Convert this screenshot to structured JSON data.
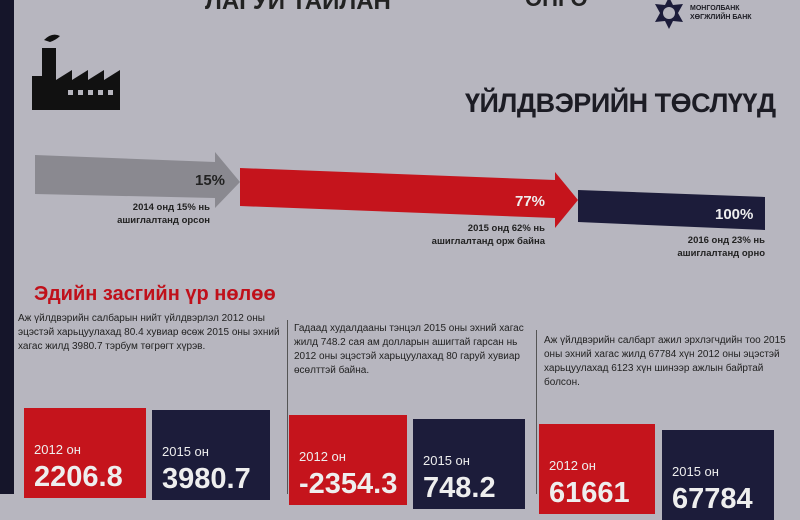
{
  "header": {
    "title_fragment": "ЛАГУЙ ТАЙЛАН",
    "title_fragment_right": "ӨНГӨ",
    "logo_text": [
      "МОНГОЛБАНК",
      "ХӨГЖЛИЙН БАНК"
    ]
  },
  "section1": {
    "title": "ҮЙЛДВЭРИЙН ТӨСЛҮҮД",
    "stages": [
      {
        "percent": "15%",
        "caption": [
          "2014 онд 15% нь",
          "ашиглалтанд орсон"
        ],
        "color": "#8a8990"
      },
      {
        "percent": "77%",
        "caption": [
          "2015 онд 62% нь",
          "ашиглалтанд орж байна"
        ],
        "color": "#c5141c"
      },
      {
        "percent": "100%",
        "caption": [
          "2016 онд 23% нь",
          "ашиглалтанд орно"
        ],
        "color": "#1c1c3a"
      }
    ]
  },
  "section2": {
    "title": "Эдийн засгийн үр нөлөө",
    "columns": [
      {
        "text": "Аж үйлдвэрийн салбарын нийт үйлдвэрлэл 2012 оны эцэстэй харьцуулахад 80.4 хувиар өсөж 2015 оны эхний хагас жилд 3980.7 тэрбум төгрөгт хүрэв.",
        "cards": [
          {
            "year": "2012 он",
            "value": "2206.8"
          },
          {
            "year": "2015 он",
            "value": "3980.7"
          }
        ]
      },
      {
        "text": "Гадаад худалдааны тэнцэл 2015 оны эхний хагас жилд 748.2 сая ам долларын ашигтай гарсан нь 2012 оны эцэстэй харьцуулахад 80 гаруй хувиар өсөлттэй байна.",
        "cards": [
          {
            "year": "2012 он",
            "value": "-2354.3"
          },
          {
            "year": "2015 он",
            "value": "748.2"
          }
        ]
      },
      {
        "text": "Аж үйлдвэрийн салбарт ажил эрхлэгчдийн тоо 2015 оны эхний хагас жилд 67784 хүн 2012 оны эцэстэй харьцуулахад 6123 хүн шинээр ажлын байртай болсон.",
        "cards": [
          {
            "year": "2012 он",
            "value": "61661"
          },
          {
            "year": "2015 он",
            "value": "67784"
          }
        ]
      }
    ]
  }
}
